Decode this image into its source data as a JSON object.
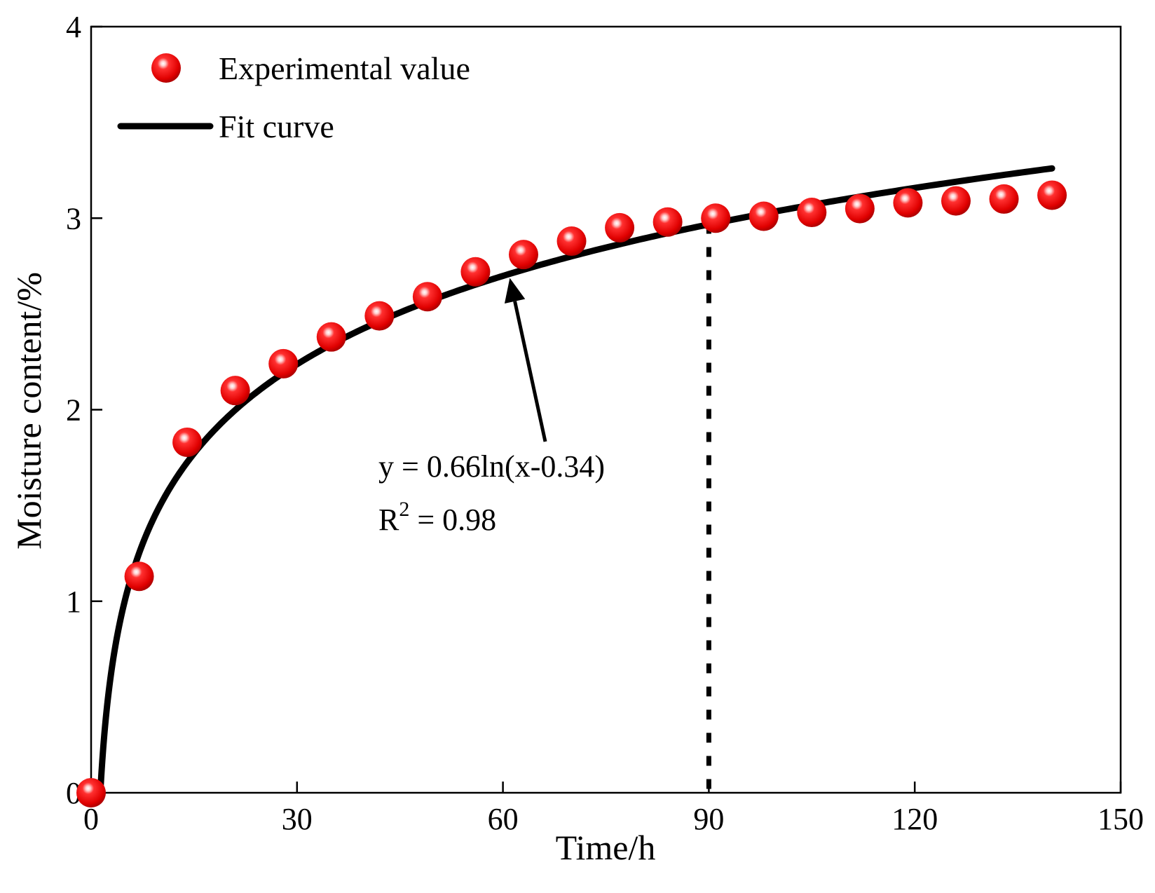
{
  "chart_data": {
    "type": "scatter",
    "title": "",
    "xlabel": "Time/h",
    "ylabel": "Moisture content/%",
    "xlim": [
      0,
      150
    ],
    "ylim": [
      0,
      4
    ],
    "x_ticks": [
      0,
      30,
      60,
      90,
      120,
      150
    ],
    "y_ticks": [
      0,
      1,
      2,
      3,
      4
    ],
    "grid": false,
    "legend_position": "top-left",
    "series": [
      {
        "name": "Experimental value",
        "kind": "scatter",
        "color": "#ff0000",
        "x": [
          0,
          7,
          14,
          21,
          28,
          35,
          42,
          49,
          56,
          63,
          70,
          77,
          84,
          91,
          98,
          105,
          112,
          119,
          126,
          133,
          140
        ],
        "y": [
          0.0,
          1.13,
          1.83,
          2.1,
          2.24,
          2.38,
          2.49,
          2.59,
          2.72,
          2.81,
          2.88,
          2.95,
          2.98,
          3.0,
          3.01,
          3.03,
          3.05,
          3.08,
          3.09,
          3.1,
          3.12
        ]
      },
      {
        "name": "Fit curve",
        "kind": "line",
        "color": "#000000",
        "equation": "y = 0.66ln(x-0.34)",
        "a": 0.66,
        "b": 0.34,
        "x_range": [
          1.34,
          140
        ]
      }
    ],
    "annotations": {
      "equation_line1": "y = 0.66ln(x-0.34)",
      "r2_prefix": "R",
      "r2_sup": "2",
      "r2_suffix": " = 0.98",
      "arrow_target_x": 61,
      "vertical_marker_x": 90
    }
  }
}
